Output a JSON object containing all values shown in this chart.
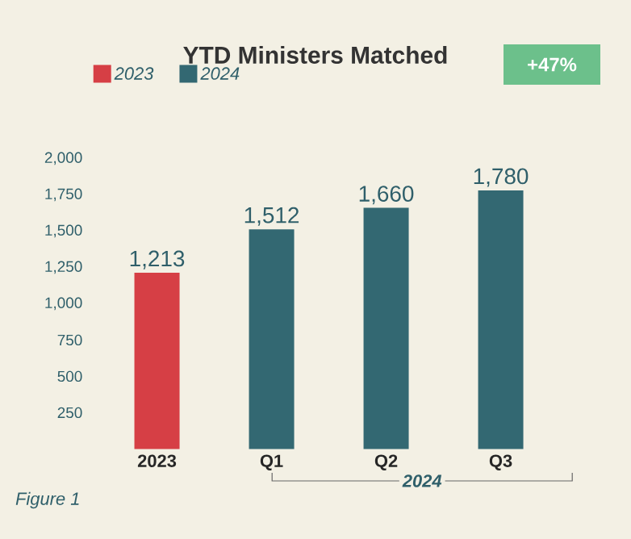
{
  "chart_data": {
    "type": "bar",
    "title": "YTD Ministers Matched",
    "categories": [
      "2023",
      "Q1",
      "Q2",
      "Q3"
    ],
    "series": [
      {
        "name": "2023",
        "color": "#d63f45",
        "values": [
          1213,
          null,
          null,
          null
        ],
        "value_labels": [
          "1,213",
          null,
          null,
          null
        ]
      },
      {
        "name": "2024",
        "color": "#336872",
        "values": [
          null,
          1512,
          1660,
          1780
        ],
        "value_labels": [
          null,
          "1,512",
          "1,660",
          "1,780"
        ]
      }
    ],
    "ylim": [
      0,
      2000
    ],
    "yticks": [
      {
        "value": 250,
        "label": "250"
      },
      {
        "value": 500,
        "label": "500"
      },
      {
        "value": 750,
        "label": "750"
      },
      {
        "value": 1000,
        "label": "1,000"
      },
      {
        "value": 1250,
        "label": "1,250"
      },
      {
        "value": 1500,
        "label": "1,500"
      },
      {
        "value": 1750,
        "label": "1,750"
      },
      {
        "value": 2000,
        "label": "2,000"
      }
    ],
    "legend": "top left",
    "grid": false,
    "annotations": [
      "+47%",
      "2024",
      "Figure 1"
    ]
  }
}
